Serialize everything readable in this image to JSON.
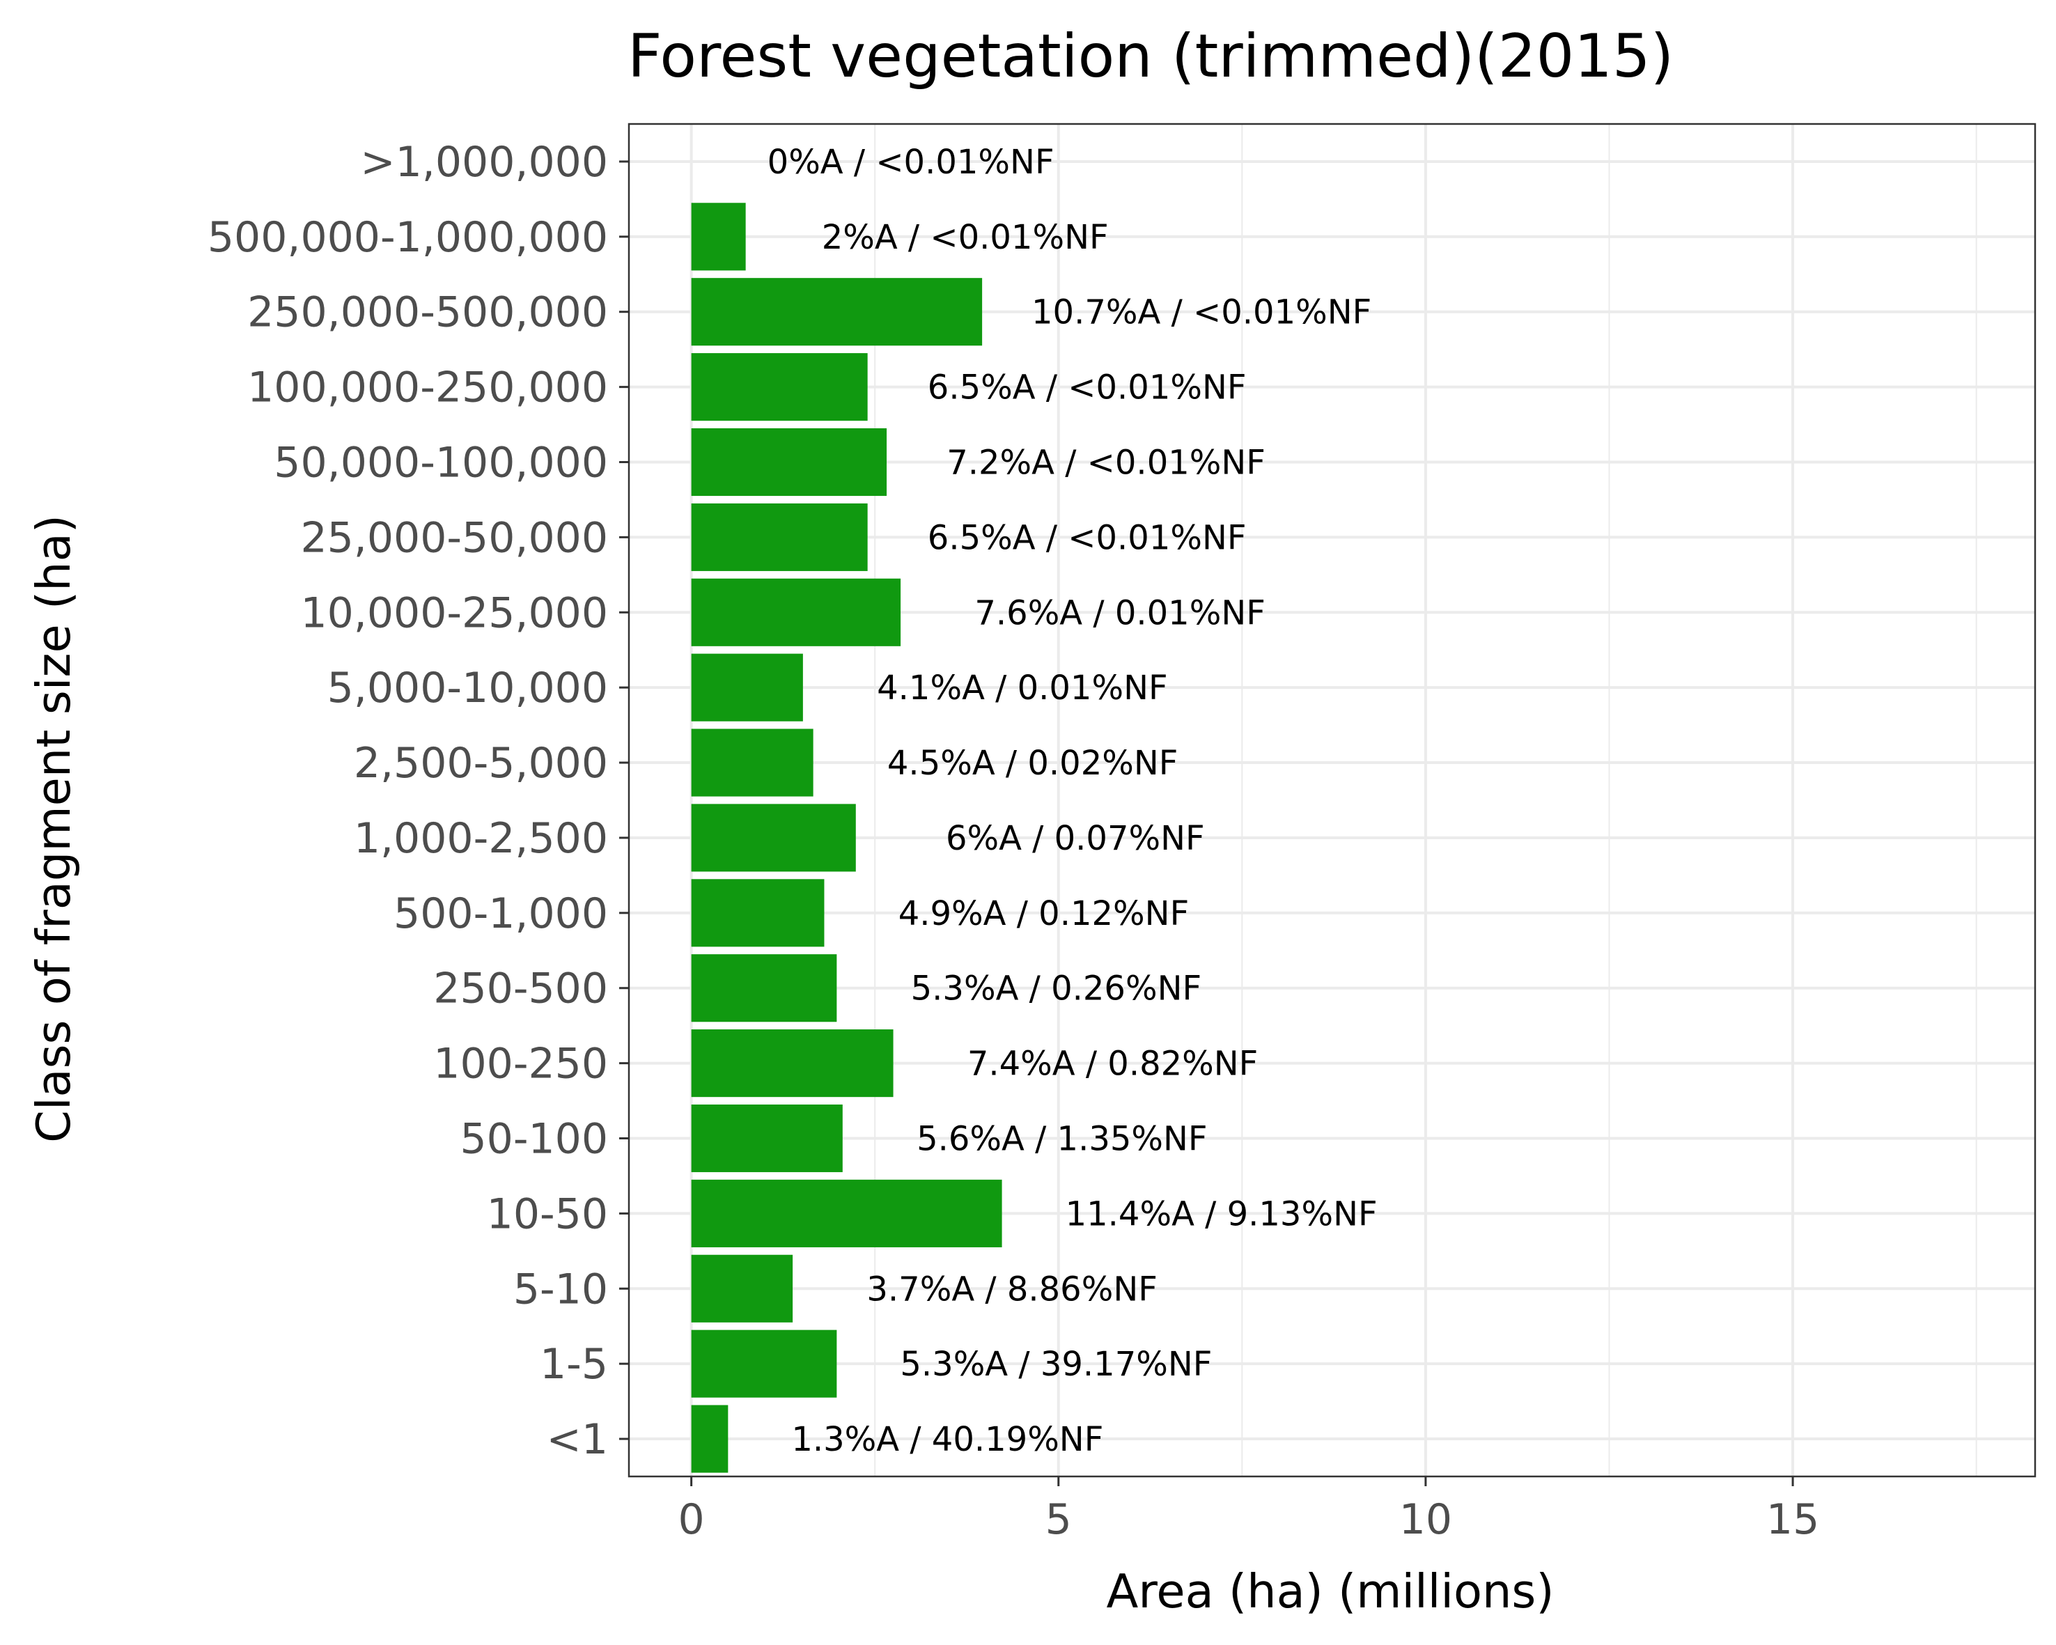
{
  "chart_data": {
    "type": "bar",
    "orientation": "horizontal",
    "title": "Forest vegetation (trimmed)(2015)",
    "xlabel": "Area (ha) (millions)",
    "ylabel": "Class of fragment size (ha)",
    "xlim": [
      -0.85,
      18.3
    ],
    "xticks": [
      0,
      5,
      10,
      15
    ],
    "grid": true,
    "bar_color": "#109910",
    "categories": [
      ">1,000,000",
      "500,000-1,000,000",
      "250,000-500,000",
      "100,000-250,000",
      "50,000-100,000",
      "25,000-50,000",
      "10,000-25,000",
      "5,000-10,000",
      "2,500-5,000",
      "1,000-2,500",
      "500-1,000",
      "250-500",
      "100-250",
      "50-100",
      "10-50",
      "5-10",
      "1-5",
      "<1"
    ],
    "values": [
      0,
      0.74,
      3.96,
      2.4,
      2.66,
      2.4,
      2.85,
      1.52,
      1.66,
      2.24,
      1.81,
      1.98,
      2.75,
      2.06,
      4.23,
      1.38,
      1.98,
      0.5
    ],
    "labels": [
      "0%A / <0.01%NF",
      "2%A / <0.01%NF",
      "10.7%A / <0.01%NF",
      "6.5%A / <0.01%NF",
      "7.2%A / <0.01%NF",
      "6.5%A / <0.01%NF",
      "7.6%A / 0.01%NF",
      "4.1%A / 0.01%NF",
      "4.5%A / 0.02%NF",
      "6%A / 0.07%NF",
      "4.9%A / 0.12%NF",
      "5.3%A / 0.26%NF",
      "7.4%A / 0.82%NF",
      "5.6%A / 1.35%NF",
      "11.4%A / 9.13%NF",
      "3.7%A / 8.86%NF",
      "5.3%A / 39.17%NF",
      "1.3%A / 40.19%NF"
    ]
  }
}
